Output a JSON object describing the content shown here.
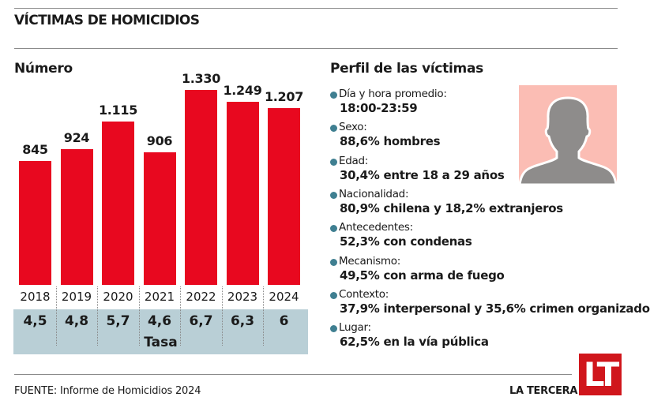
{
  "header": {
    "title": "VÍCTIMAS DE HOMICIDIOS"
  },
  "chart_data": {
    "type": "bar",
    "title": "Número",
    "categories": [
      "2018",
      "2019",
      "2020",
      "2021",
      "2022",
      "2023",
      "2024"
    ],
    "values": [
      845,
      924,
      1115,
      906,
      1330,
      1249,
      1207
    ],
    "value_labels": [
      "845",
      "924",
      "1.115",
      "906",
      "1.330",
      "1.249",
      "1.207"
    ],
    "rates": [
      "4,5",
      "4,8",
      "5,7",
      "4,6",
      "6,7",
      "6,3",
      "6"
    ],
    "rate_label": "Tasa",
    "xlabel": "",
    "ylabel": "",
    "ylim": [
      0,
      1330
    ],
    "grid": false,
    "bar_color": "#e8081f"
  },
  "profile": {
    "title": "Perfil de las víctimas",
    "items": [
      {
        "label": "Día y hora promedio:",
        "value": "18:00-23:59"
      },
      {
        "label": "Sexo:",
        "value": "88,6% hombres"
      },
      {
        "label": "Edad:",
        "value": "30,4% entre 18 a 29 años"
      },
      {
        "label": "Nacionalidad:",
        "value": "80,9% chilena y 18,2% extranjeros"
      },
      {
        "label": "Antecedentes:",
        "value": "52,3% con condenas"
      },
      {
        "label": "Mecanismo:",
        "value": "49,5% con arma de fuego"
      },
      {
        "label": "Contexto:",
        "value": "37,9% interpersonal y 35,6% crimen organizado"
      },
      {
        "label": "Lugar:",
        "value": "62,5% en la vía pública"
      }
    ],
    "avatar_icon": "person-silhouette-icon"
  },
  "footer": {
    "source": "FUENTE: Informe de Homicidios 2024",
    "brand": "LA TERCERA",
    "logo_text": "LT"
  },
  "colors": {
    "accent": "#e8081f",
    "bullet": "#3f7f91",
    "tasa_bg": "#b9cfd6",
    "avatar_bg": "#fbbdb4",
    "logo_bg": "#d0161c"
  }
}
